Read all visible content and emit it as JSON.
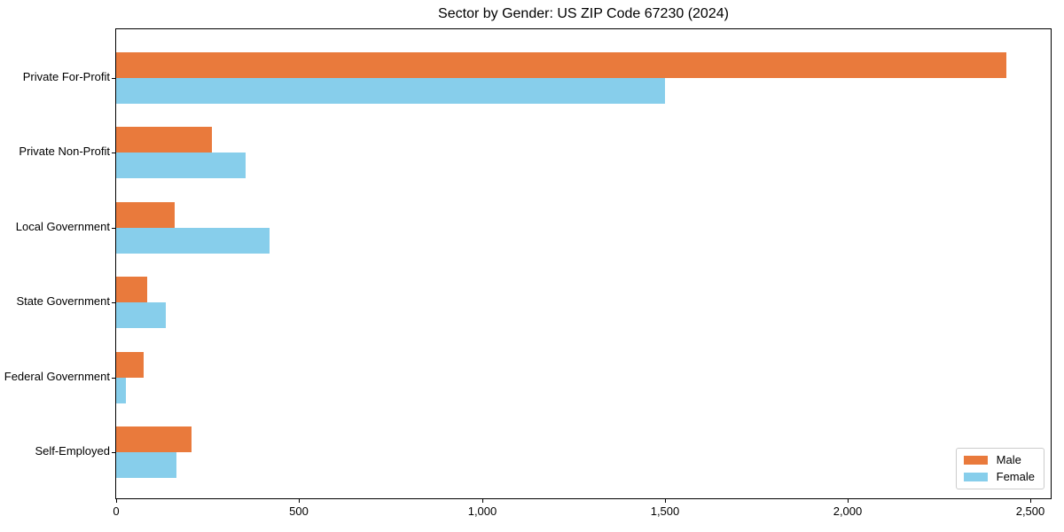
{
  "title": "Sector by Gender: US ZIP Code 67230 (2024)",
  "chart_data": {
    "type": "bar",
    "orientation": "horizontal",
    "title": "Sector by Gender: US ZIP Code 67230 (2024)",
    "categories": [
      "Private For-Profit",
      "Private Non-Profit",
      "Local Government",
      "State Government",
      "Federal Government",
      "Self-Employed"
    ],
    "series": [
      {
        "name": "Male",
        "color": "#e97a3c",
        "values": [
          2433,
          261,
          160,
          86,
          74,
          205
        ]
      },
      {
        "name": "Female",
        "color": "#87ceeb",
        "values": [
          1500,
          355,
          420,
          136,
          27,
          166
        ]
      }
    ],
    "xlabel": "",
    "ylabel": "",
    "xlim": [
      0,
      2555
    ],
    "xticks": [
      0,
      500,
      1000,
      1500,
      2000,
      2500
    ],
    "xtick_labels": [
      "0",
      "500",
      "1,000",
      "1,500",
      "2,000",
      "2,500"
    ],
    "grid": false,
    "legend_position": "lower right",
    "plot_border": "#000000",
    "background": "#ffffff"
  }
}
